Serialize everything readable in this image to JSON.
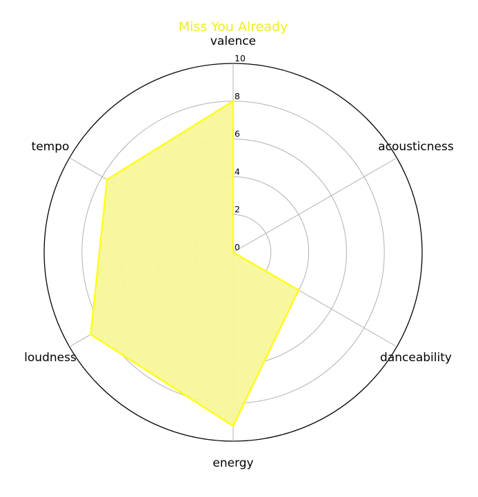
{
  "chart_data": {
    "type": "radar",
    "title": "Miss You Already",
    "axes": [
      "valence",
      "acousticness",
      "danceability",
      "energy",
      "loudness",
      "tempo"
    ],
    "series": [
      {
        "values": [
          8,
          0,
          4,
          9.2,
          8.7,
          7.7
        ]
      }
    ],
    "rlim": [
      0,
      10
    ],
    "rticks": [
      0,
      2,
      4,
      6,
      8,
      10
    ],
    "grid": true,
    "legend": "none"
  },
  "colors": {
    "title": "#f0f018",
    "series_line": "#ffff1a",
    "series_fill": "#f7f79a",
    "grid": "#b0b0b0",
    "outer_ring": "#000000"
  }
}
